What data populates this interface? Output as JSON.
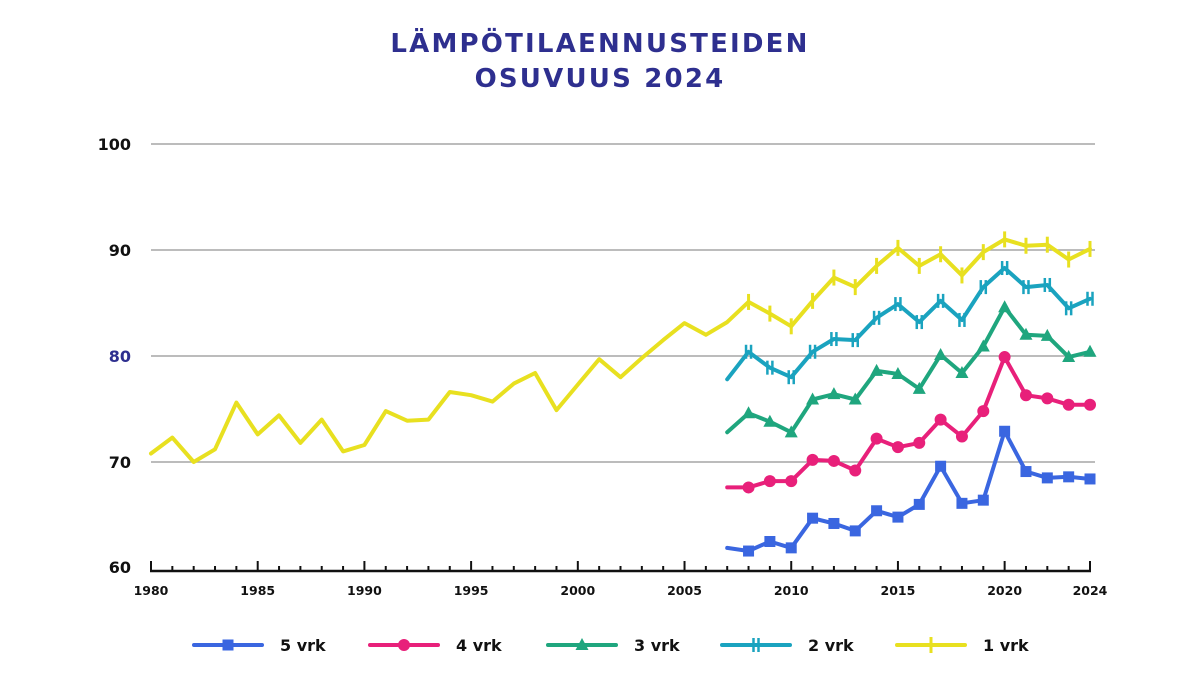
{
  "chart_data": {
    "type": "line",
    "title": [
      "LÄMPÖTILAENNUSTEIDEN",
      "OSUVUUS 2024"
    ],
    "xlabel": "",
    "ylabel": "",
    "xlim": [
      1980,
      2024
    ],
    "ylim": [
      60,
      100
    ],
    "grid": true,
    "legend_position": "bottom",
    "y_ticks": [
      {
        "value": 100,
        "label": "100",
        "accent": false
      },
      {
        "value": 90,
        "label": "90",
        "accent": false
      },
      {
        "value": 80,
        "label": "80",
        "accent": true
      },
      {
        "value": 70,
        "label": "70",
        "accent": false
      },
      {
        "value": 60,
        "label": "60",
        "accent": false
      }
    ],
    "x_tick_labels": [
      {
        "value": 1980,
        "label": "1980"
      },
      {
        "value": 1985,
        "label": "1985"
      },
      {
        "value": 1990,
        "label": "1990"
      },
      {
        "value": 1995,
        "label": "1995"
      },
      {
        "value": 2000,
        "label": "2000"
      },
      {
        "value": 2005,
        "label": "2005"
      },
      {
        "value": 2010,
        "label": "2010"
      },
      {
        "value": 2015,
        "label": "2015"
      },
      {
        "value": 2020,
        "label": "2020"
      },
      {
        "value": 2024,
        "label": "2024"
      }
    ],
    "series": [
      {
        "name": "5 vrk",
        "color": "#3A66E0",
        "marker": "square",
        "start_year": 2007,
        "values": [
          61.9,
          61.6,
          62.5,
          61.9,
          64.7,
          64.2,
          63.5,
          65.4,
          64.8,
          66.0,
          69.6,
          66.1,
          66.4,
          72.9,
          69.1,
          68.5,
          68.6,
          68.4
        ]
      },
      {
        "name": "4 vrk",
        "color": "#E8207A",
        "marker": "circle",
        "start_year": 2007,
        "values": [
          67.6,
          67.6,
          68.2,
          68.2,
          70.2,
          70.1,
          69.2,
          72.2,
          71.4,
          71.8,
          74.0,
          72.4,
          74.8,
          79.9,
          76.3,
          76.0,
          75.4,
          75.4
        ]
      },
      {
        "name": "3 vrk",
        "color": "#1FA67E",
        "marker": "triangle",
        "start_year": 2007,
        "values": [
          72.8,
          74.6,
          73.8,
          72.8,
          75.9,
          76.4,
          75.9,
          78.6,
          78.3,
          76.9,
          80.1,
          78.4,
          80.9,
          84.6,
          82.0,
          81.9,
          79.9,
          80.4
        ]
      },
      {
        "name": "2 vrk",
        "color": "#1AA3BF",
        "marker": "double-bar",
        "start_year": 2007,
        "values": [
          77.8,
          80.4,
          78.9,
          78.0,
          80.4,
          81.6,
          81.5,
          83.6,
          84.9,
          83.2,
          85.2,
          83.4,
          86.5,
          88.3,
          86.5,
          86.7,
          84.5,
          85.4
        ]
      },
      {
        "name": "1 vrk",
        "color": "#E8E020",
        "marker": "bar",
        "marker_start_year": 2008,
        "start_year": 1980,
        "values": [
          70.8,
          72.3,
          70.0,
          71.2,
          75.6,
          72.6,
          74.4,
          71.8,
          74.0,
          71.0,
          71.6,
          74.8,
          73.9,
          74.0,
          76.6,
          76.3,
          75.7,
          77.4,
          78.4,
          74.9,
          77.3,
          79.7,
          78.0,
          79.8,
          81.5,
          83.1,
          82.0,
          83.2,
          85.1,
          84.0,
          82.8,
          85.2,
          87.4,
          86.5,
          88.5,
          90.2,
          88.5,
          89.6,
          87.6,
          89.8,
          91.0,
          90.4,
          90.5,
          89.1,
          90.1
        ]
      }
    ]
  },
  "colors": {
    "title": "#2E2F8F",
    "gridline": "#A6A6A6",
    "axis": "#111111"
  }
}
